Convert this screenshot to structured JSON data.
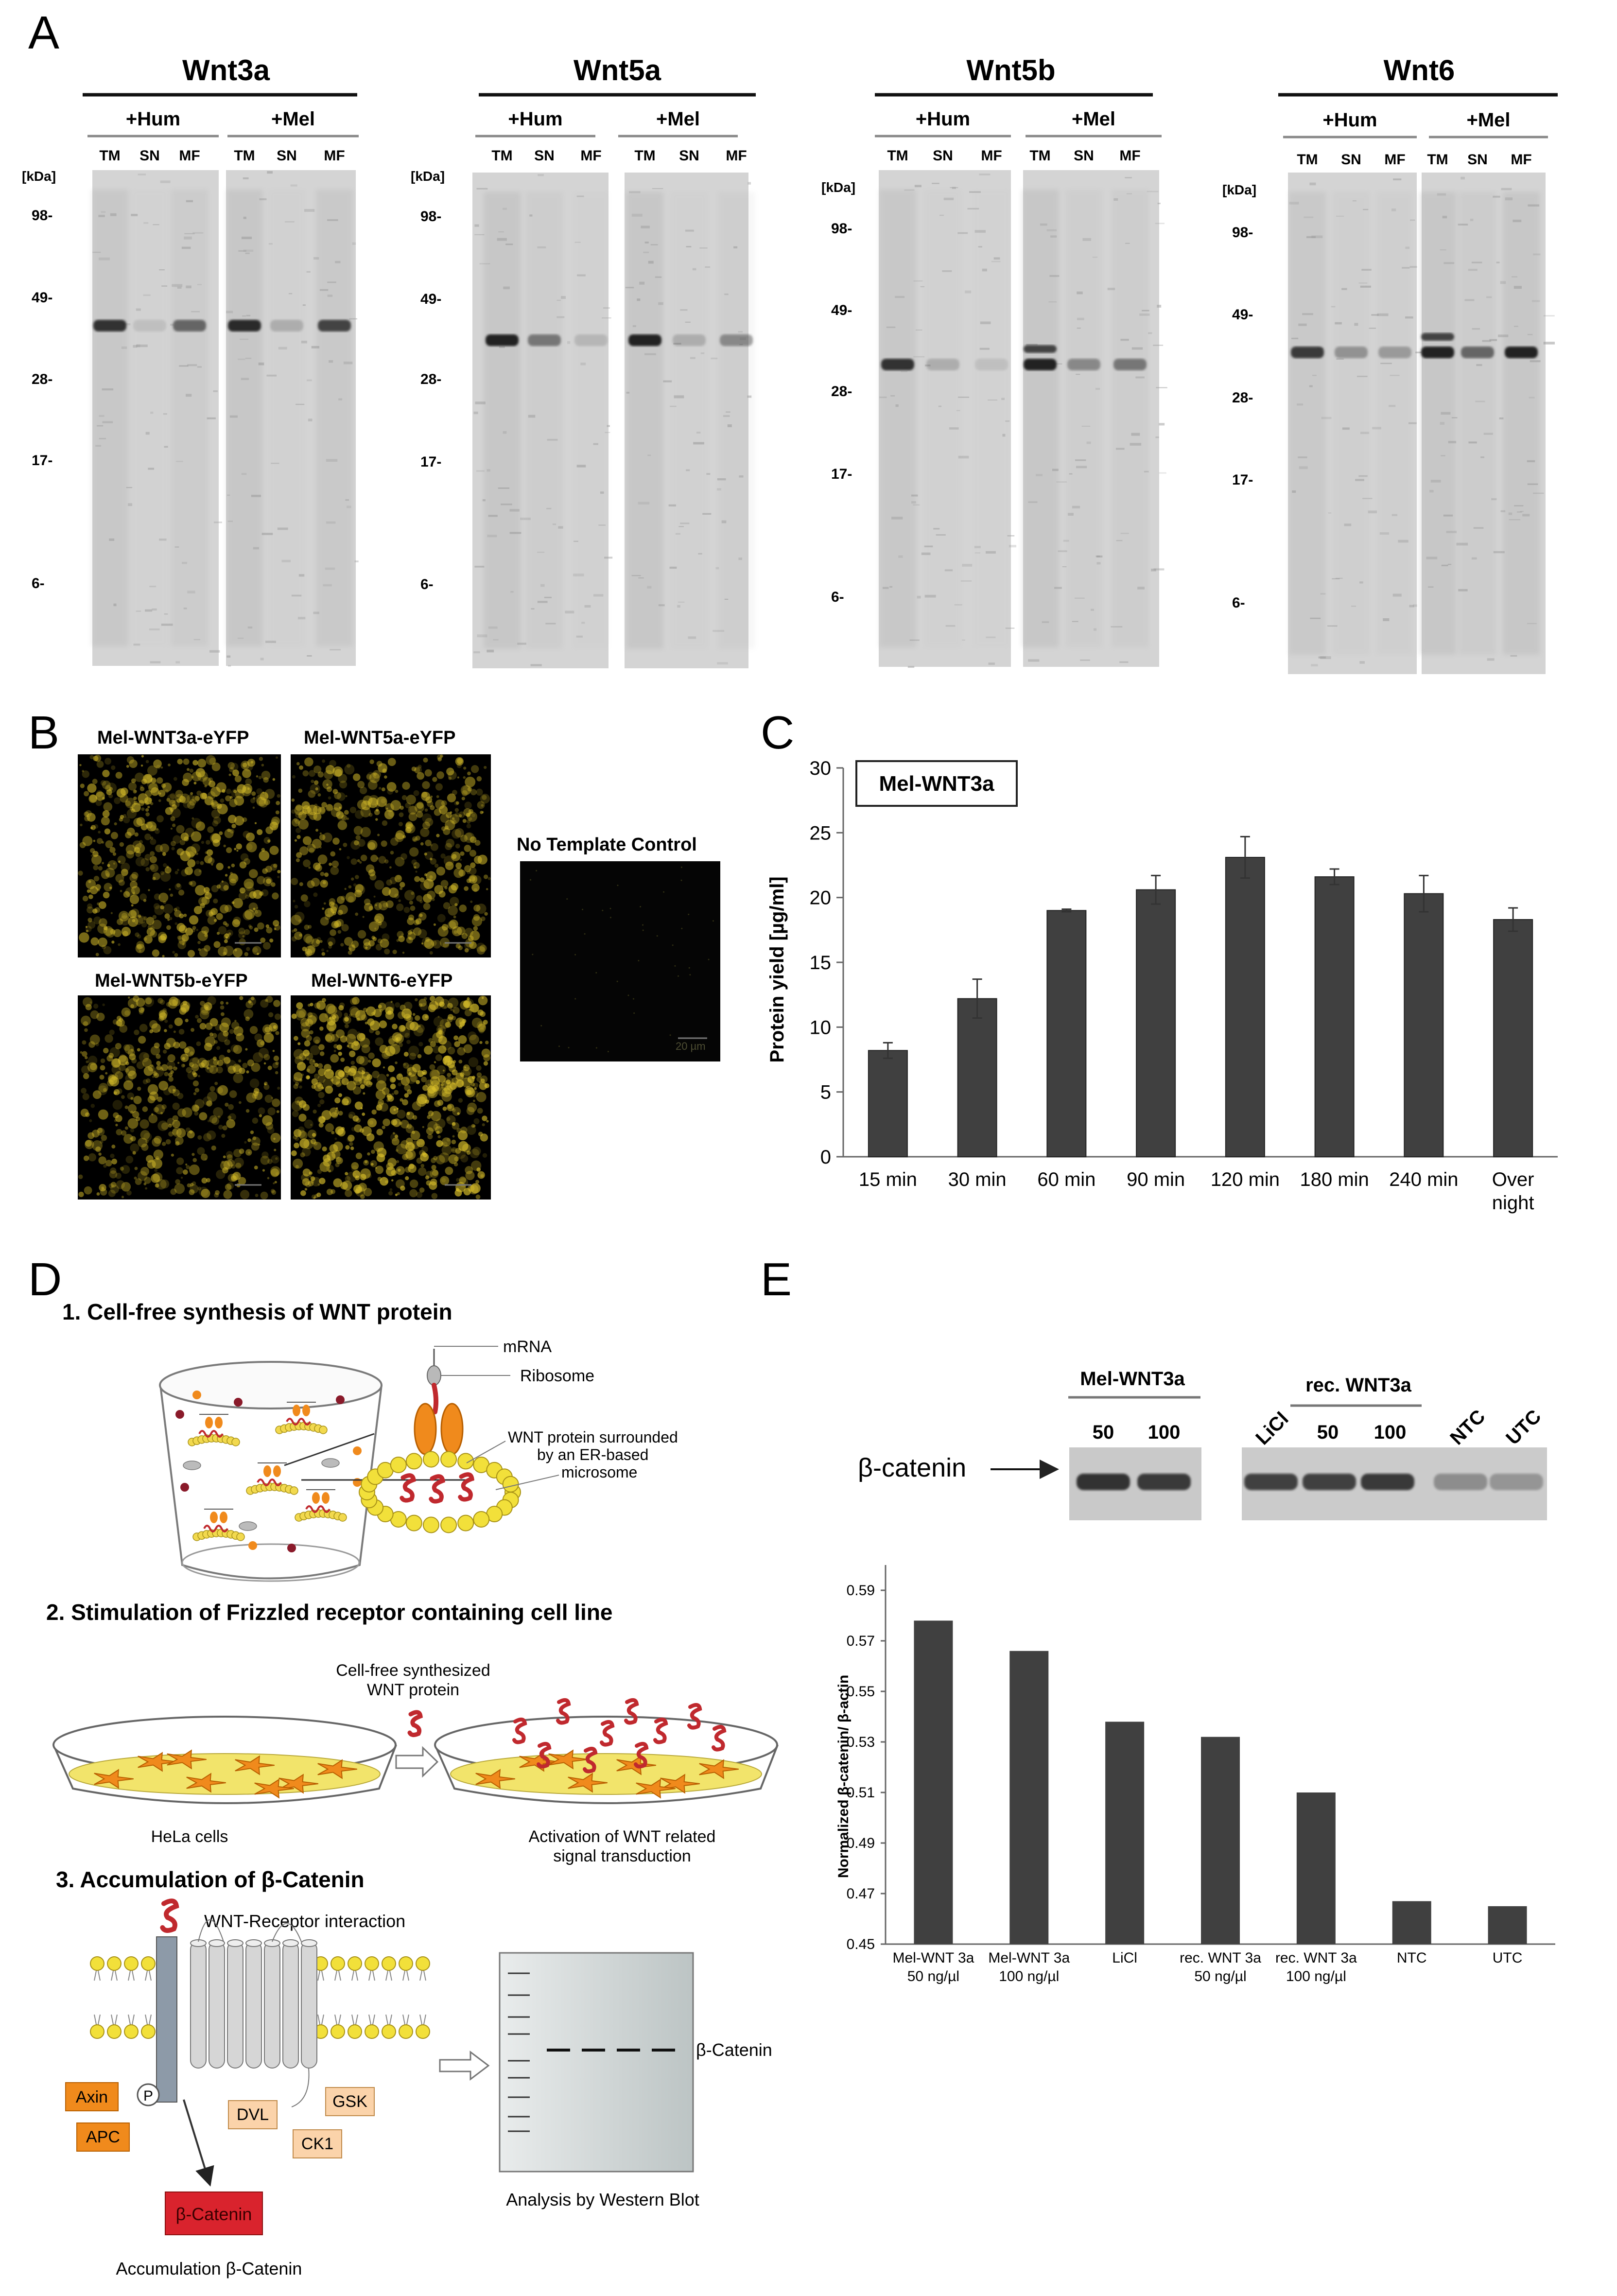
{
  "panel_letters": [
    "A",
    "B",
    "C",
    "D",
    "E"
  ],
  "colors": {
    "bar": "#404040",
    "gel": "#d4d4d4",
    "band": "#222222",
    "yellow": "#f2d94e",
    "orange": "#f08a1c",
    "red_protein": "#c0292e",
    "accumulation_red": "#d9232d",
    "gray_receptor": "#9aa3ad"
  },
  "panelA": {
    "kda_label": "[kDa]",
    "kda_marks": [
      "98-",
      "49-",
      "28-",
      "17-",
      "6-"
    ],
    "conditions": [
      "+Hum",
      "+Mel"
    ],
    "lanes": [
      "TM",
      "SN",
      "MF"
    ],
    "blots": [
      {
        "title": "Wnt3a",
        "band_intensity": [
          [
            0.9,
            0.1,
            0.6
          ],
          [
            0.95,
            0.2,
            0.8
          ]
        ]
      },
      {
        "title": "Wnt5a",
        "band_intensity": [
          [
            1.0,
            0.5,
            0.15
          ],
          [
            1.0,
            0.2,
            0.4
          ]
        ]
      },
      {
        "title": "Wnt5b",
        "band_intensity": [
          [
            0.9,
            0.2,
            0.1
          ],
          [
            1.0,
            0.4,
            0.5
          ]
        ]
      },
      {
        "title": "Wnt6",
        "band_intensity": [
          [
            0.85,
            0.35,
            0.3
          ],
          [
            1.0,
            0.6,
            1.0
          ]
        ]
      }
    ]
  },
  "panelB": {
    "images": [
      "Mel-WNT3a-eYFP",
      "Mel-WNT5a-eYFP",
      "Mel-WNT5b-eYFP",
      "Mel-WNT6-eYFP"
    ],
    "control": "No Template Control",
    "scale_label": "20 µm"
  },
  "panelC": {
    "chart_data": {
      "type": "bar",
      "legend_box": "Mel-WNT3a",
      "ylabel": "Protein yield [µg/ml]",
      "ylim": [
        0,
        30
      ],
      "yticks": [
        0,
        5,
        10,
        15,
        20,
        25,
        30
      ],
      "categories": [
        "15 min",
        "30 min",
        "60 min",
        "90 min",
        "120 min",
        "180 min",
        "240 min",
        "Over night"
      ],
      "values": [
        8.2,
        12.2,
        19.0,
        20.6,
        23.1,
        21.6,
        20.3,
        18.3
      ],
      "errors": [
        0.6,
        1.5,
        0.1,
        1.1,
        1.6,
        0.6,
        1.4,
        0.9
      ]
    }
  },
  "panelD": {
    "step1": "1. Cell-free synthesis of WNT protein",
    "mrna": "mRNA",
    "ribosome": "Ribosome",
    "wnt_surrounded_1": "WNT protein surrounded",
    "wnt_surrounded_2": "by an ER-based",
    "wnt_surrounded_3": "microsome",
    "step2": "2. Stimulation of Frizzled receptor containing cell line",
    "cf_synth_1": "Cell-free synthesized",
    "cf_synth_2": "WNT protein",
    "hela": "HeLa cells",
    "activation_1": "Activation of WNT related",
    "activation_2": "signal transduction",
    "step3": "3. Accumulation of β-Catenin",
    "wnt_receptor": "WNT-Receptor interaction",
    "p": "P",
    "axin": "Axin",
    "apc": "APC",
    "dvl": "DVL",
    "gsk": "GSK",
    "ck1": "CK1",
    "b_catenin_box": "β-Catenin",
    "accumulation": "Accumulation β-Catenin",
    "blot_label": "β-Catenin",
    "analysis": "Analysis by Western Blot"
  },
  "panelE": {
    "blot": {
      "group1": "Mel-WNT3a",
      "group2": "rec. WNT3a",
      "lanes1": [
        "50",
        "100"
      ],
      "licl": "LiCl",
      "lanes2": [
        "50",
        "100"
      ],
      "ntc": "NTC",
      "utc": "UTC",
      "target": "β-catenin"
    },
    "chart_data": {
      "type": "bar",
      "ylabel": "Normalized β-catenin/ β-actin",
      "ylim": [
        0.45,
        0.6
      ],
      "yticks": [
        "0.45",
        "0.47",
        "0.49",
        "0.51",
        "0.53",
        "0.55",
        "0.57",
        "0.59"
      ],
      "categories": [
        [
          "Mel-WNT 3a",
          "50 ng/µl"
        ],
        [
          "Mel-WNT 3a",
          "100 ng/µl"
        ],
        [
          "LiCl",
          ""
        ],
        [
          "rec. WNT 3a",
          "50 ng/µl"
        ],
        [
          "rec. WNT 3a",
          "100 ng/µl"
        ],
        [
          "NTC",
          ""
        ],
        [
          "UTC",
          ""
        ]
      ],
      "values": [
        0.578,
        0.566,
        0.538,
        0.532,
        0.51,
        0.467,
        0.465
      ]
    }
  }
}
